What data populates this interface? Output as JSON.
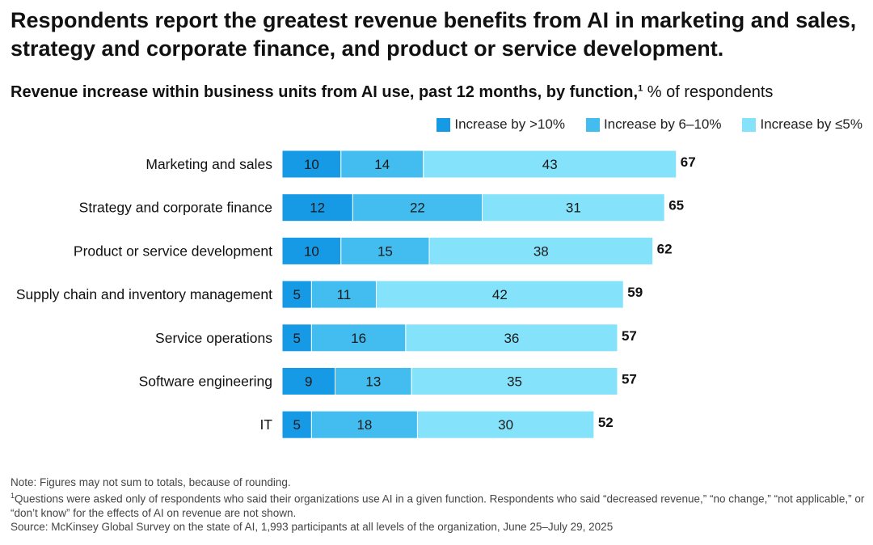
{
  "headline": "Respondents report the greatest revenue benefits from AI in marketing and sales, strategy and corporate finance, and product or service development.",
  "subtitle": {
    "bold": "Revenue increase within business units from AI use, past 12 months, by function,",
    "footnote_mark": "1",
    "unit": " % of respondents"
  },
  "colors": {
    "gt10": "#169ae6",
    "mid": "#43bdef",
    "le5": "#85e2fb",
    "text": "#111111"
  },
  "chart_data": {
    "type": "bar",
    "orientation": "horizontal",
    "stacked": true,
    "categories": [
      "Marketing and sales",
      "Strategy and corporate finance",
      "Product or service development",
      "Supply chain and inventory management",
      "Service operations",
      "Software engineering",
      "IT"
    ],
    "series": [
      {
        "name": "Increase by >10%",
        "values": [
          10,
          12,
          10,
          5,
          5,
          9,
          5
        ]
      },
      {
        "name": "Increase by 6–10%",
        "values": [
          14,
          22,
          15,
          11,
          16,
          13,
          18
        ]
      },
      {
        "name": "Increase by ≤5%",
        "values": [
          43,
          31,
          38,
          42,
          36,
          35,
          30
        ]
      }
    ],
    "totals": [
      67,
      65,
      62,
      59,
      57,
      57,
      52
    ],
    "legend_position": "top-right"
  },
  "notes": {
    "note": "Note: Figures may not sum to totals, because of rounding.",
    "footnote_mark": "1",
    "footnote_text": "Questions were asked only of respondents who said their organizations use AI in a given function. Respondents who said “decreased revenue,” “no change,” “not applicable,” or “don’t know” for the effects of AI on revenue are not shown.",
    "source": "Source: McKinsey Global Survey on the state of AI, 1,993 participants at all levels of the organization, June 25–July 29, 2025"
  }
}
